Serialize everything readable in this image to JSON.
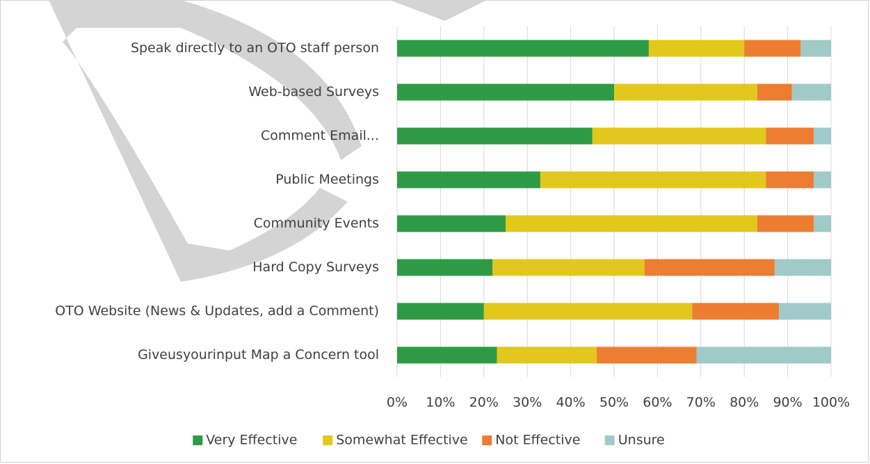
{
  "chart_data": {
    "type": "stacked-bar-horizontal",
    "categories": [
      "Speak directly to an OTO staff person",
      "Web-based Surveys",
      "Comment Email...",
      "Public Meetings",
      "Community Events",
      "Hard Copy Surveys",
      "OTO Website (News & Updates, add a Comment)",
      "Giveusyourinput Map a Concern tool"
    ],
    "series": [
      {
        "name": "Very Effective",
        "color": "#2e9b44",
        "values": [
          58,
          50,
          45,
          33,
          25,
          22,
          20,
          23
        ]
      },
      {
        "name": "Somewhat Effective",
        "color": "#e2c81c",
        "values": [
          22,
          33,
          40,
          52,
          58,
          35,
          48,
          23
        ]
      },
      {
        "name": "Not Effective",
        "color": "#ed7d31",
        "values": [
          13,
          8,
          11,
          11,
          13,
          30,
          20,
          23
        ]
      },
      {
        "name": "Unsure",
        "color": "#9fcac8",
        "values": [
          7,
          9,
          4,
          4,
          4,
          13,
          12,
          31
        ]
      }
    ],
    "xlim": [
      0,
      100
    ],
    "xticks": [
      {
        "value": 0,
        "label": "0%"
      },
      {
        "value": 10,
        "label": "10%"
      },
      {
        "value": 20,
        "label": "20%"
      },
      {
        "value": 30,
        "label": "30%"
      },
      {
        "value": 40,
        "label": "40%"
      },
      {
        "value": 50,
        "label": "50%"
      },
      {
        "value": 60,
        "label": "60%"
      },
      {
        "value": 70,
        "label": "70%"
      },
      {
        "value": 80,
        "label": "80%"
      },
      {
        "value": 90,
        "label": "90%"
      },
      {
        "value": 100,
        "label": "100%"
      }
    ],
    "grid": true,
    "legend": "bottom"
  }
}
